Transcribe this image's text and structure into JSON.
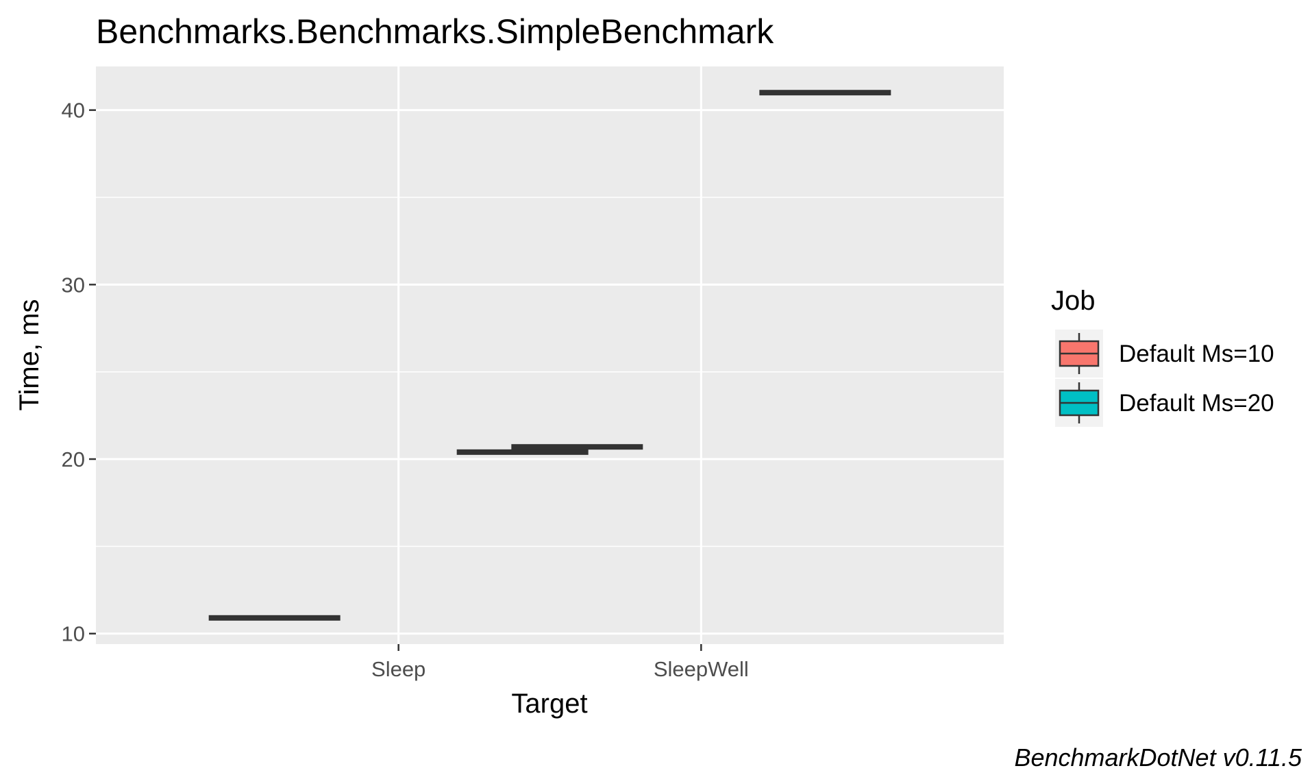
{
  "chart_data": {
    "type": "box",
    "title": "Benchmarks.Benchmarks.SimpleBenchmark",
    "xlabel": "Target",
    "ylabel": "Time, ms",
    "categories": [
      "Sleep",
      "SleepWell"
    ],
    "yticks": [
      10,
      20,
      30,
      40
    ],
    "ylim": [
      9.4,
      42.5
    ],
    "grid": true,
    "legend": {
      "title": "Job",
      "position": "right"
    },
    "series": [
      {
        "name": "Default Ms=10",
        "color": "#F8766D",
        "values": [
          10.9,
          20.7
        ]
      },
      {
        "name": "Default Ms=20",
        "color": "#00BFC4",
        "values": [
          20.4,
          41.0
        ]
      }
    ],
    "caption": "BenchmarkDotNet v0.11.5"
  }
}
